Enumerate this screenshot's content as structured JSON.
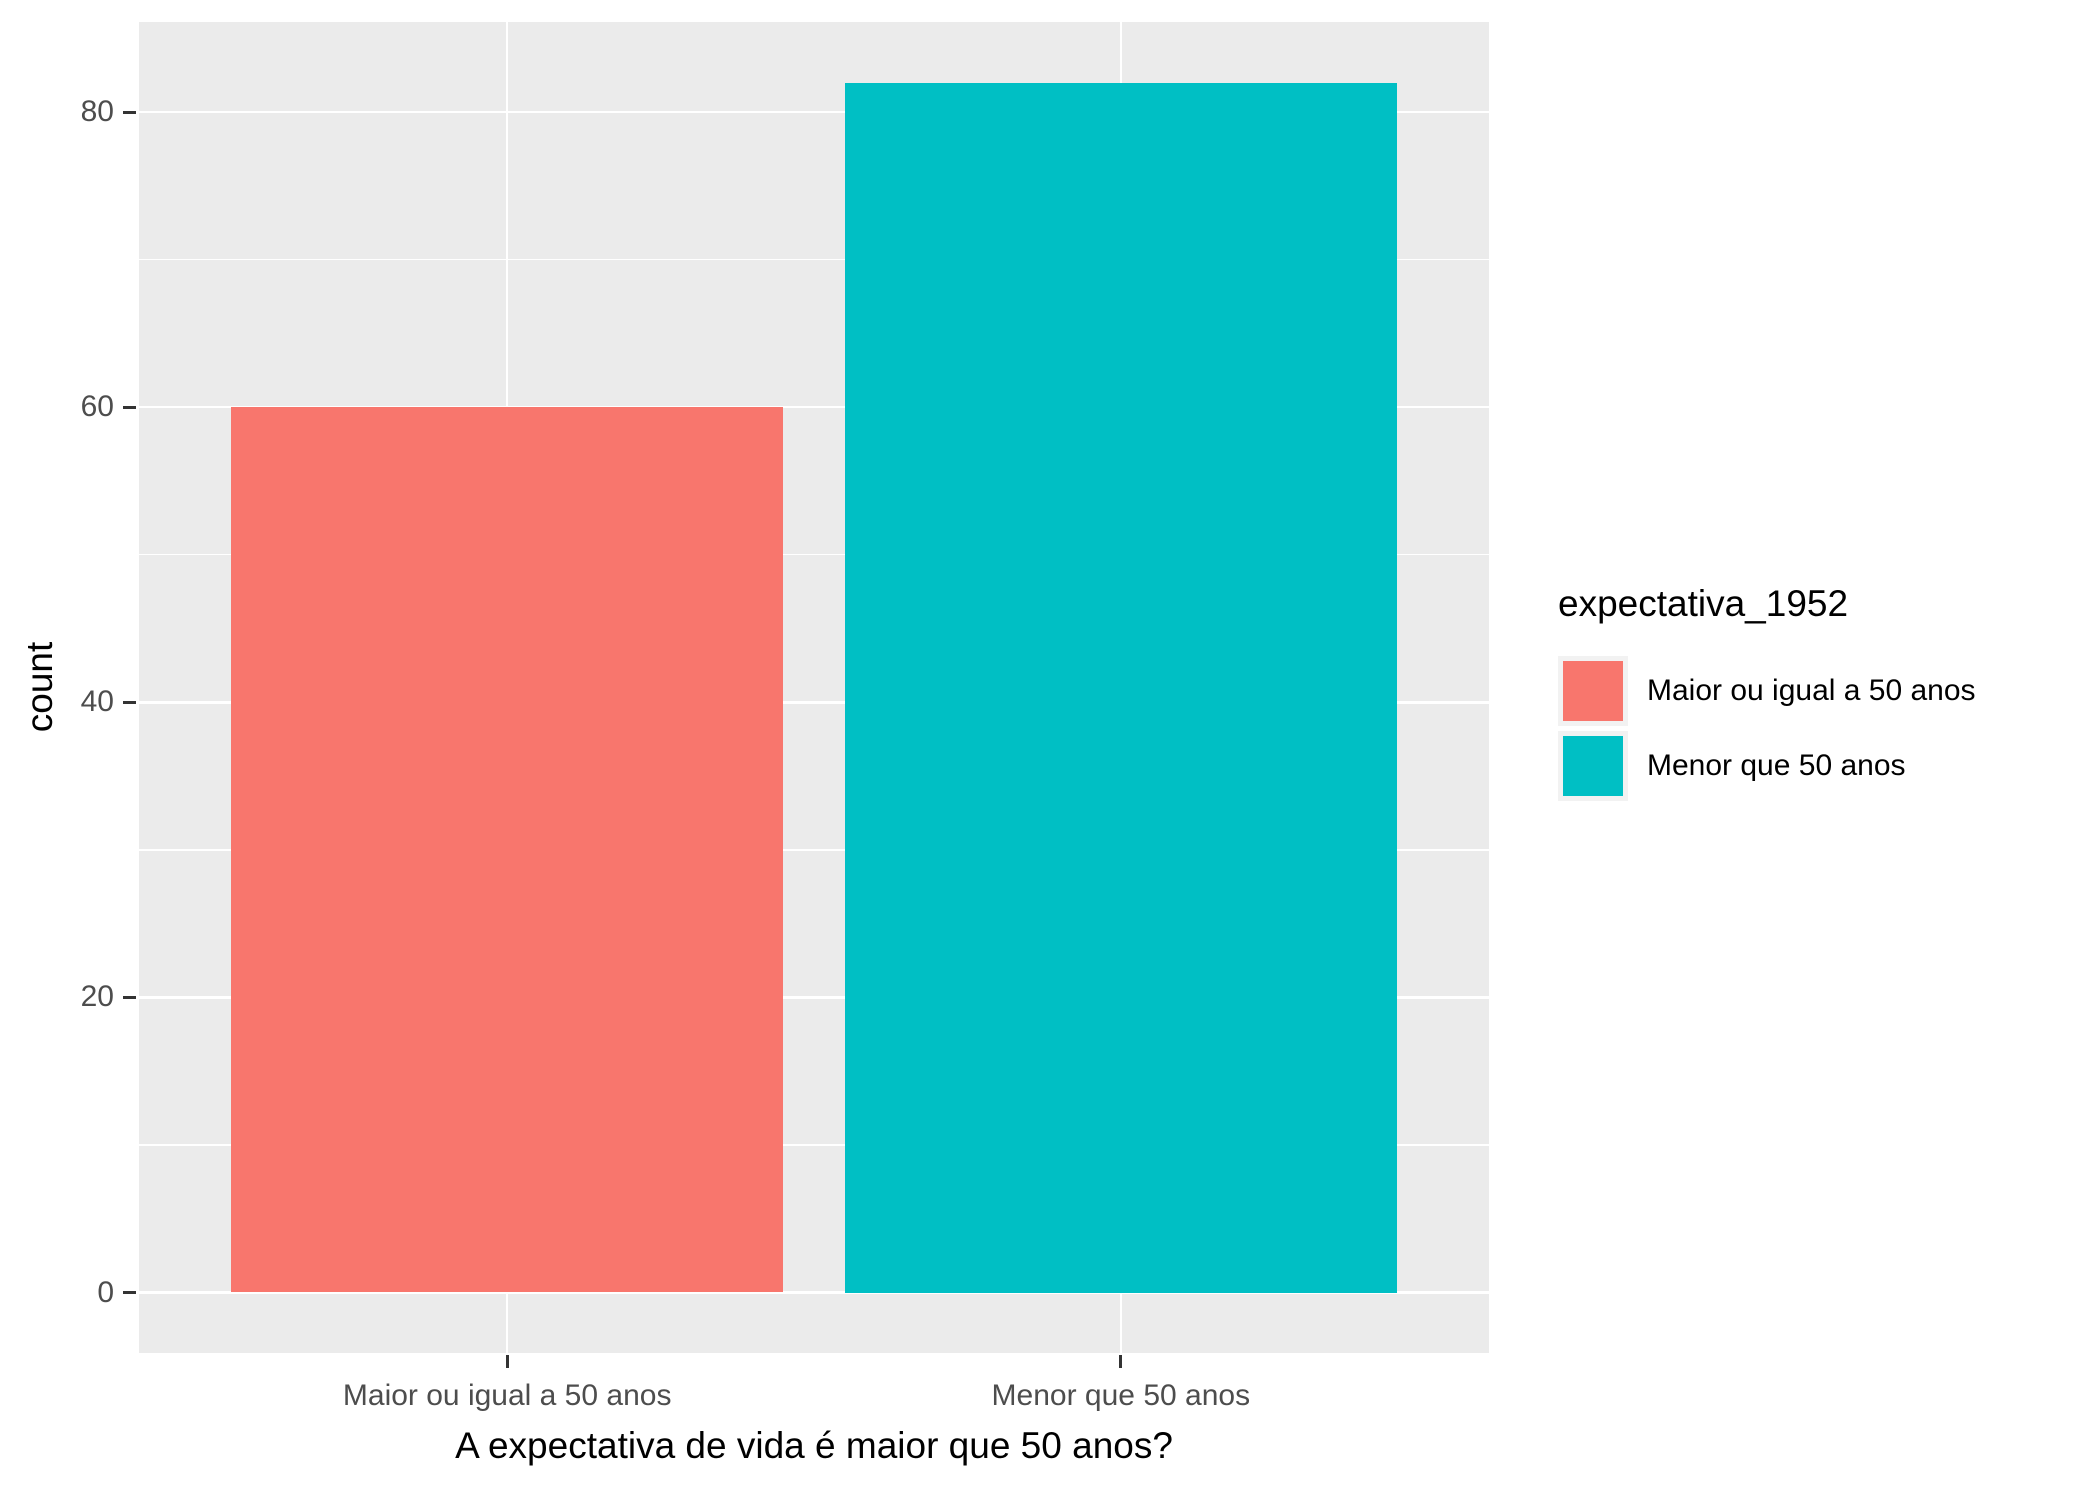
{
  "chart_data": {
    "type": "bar",
    "title": "",
    "xlabel": "A expectativa de vida é maior que 50 anos?",
    "ylabel": "count",
    "categories": [
      "Maior ou igual a 50 anos",
      "Menor que 50 anos"
    ],
    "values": [
      60,
      82
    ],
    "bar_colors": [
      "#F8766D",
      "#00BFC4"
    ],
    "y_major_breaks": [
      0,
      20,
      40,
      60,
      80
    ],
    "y_minor_breaks": [
      10,
      30,
      50,
      70
    ],
    "ylim": [
      -4.1,
      86.1
    ],
    "bar_width_fraction": 0.9,
    "grid": "white major and minor gridlines on gray panel, vertical major gridlines at category centers",
    "legend": {
      "title": "expectativa_1952",
      "position": "right",
      "entries": [
        {
          "label": "Maior ou igual a 50 anos",
          "color": "#F8766D"
        },
        {
          "label": "Menor que 50 anos",
          "color": "#00BFC4"
        }
      ]
    },
    "colors": {
      "panel_background": "#EBEBEB",
      "gridline": "#FFFFFF",
      "axis_tick": "#333333",
      "tick_label_text": "#4D4D4D",
      "axis_title_text": "#000000",
      "legend_key_background": "#F2F2F2"
    }
  }
}
